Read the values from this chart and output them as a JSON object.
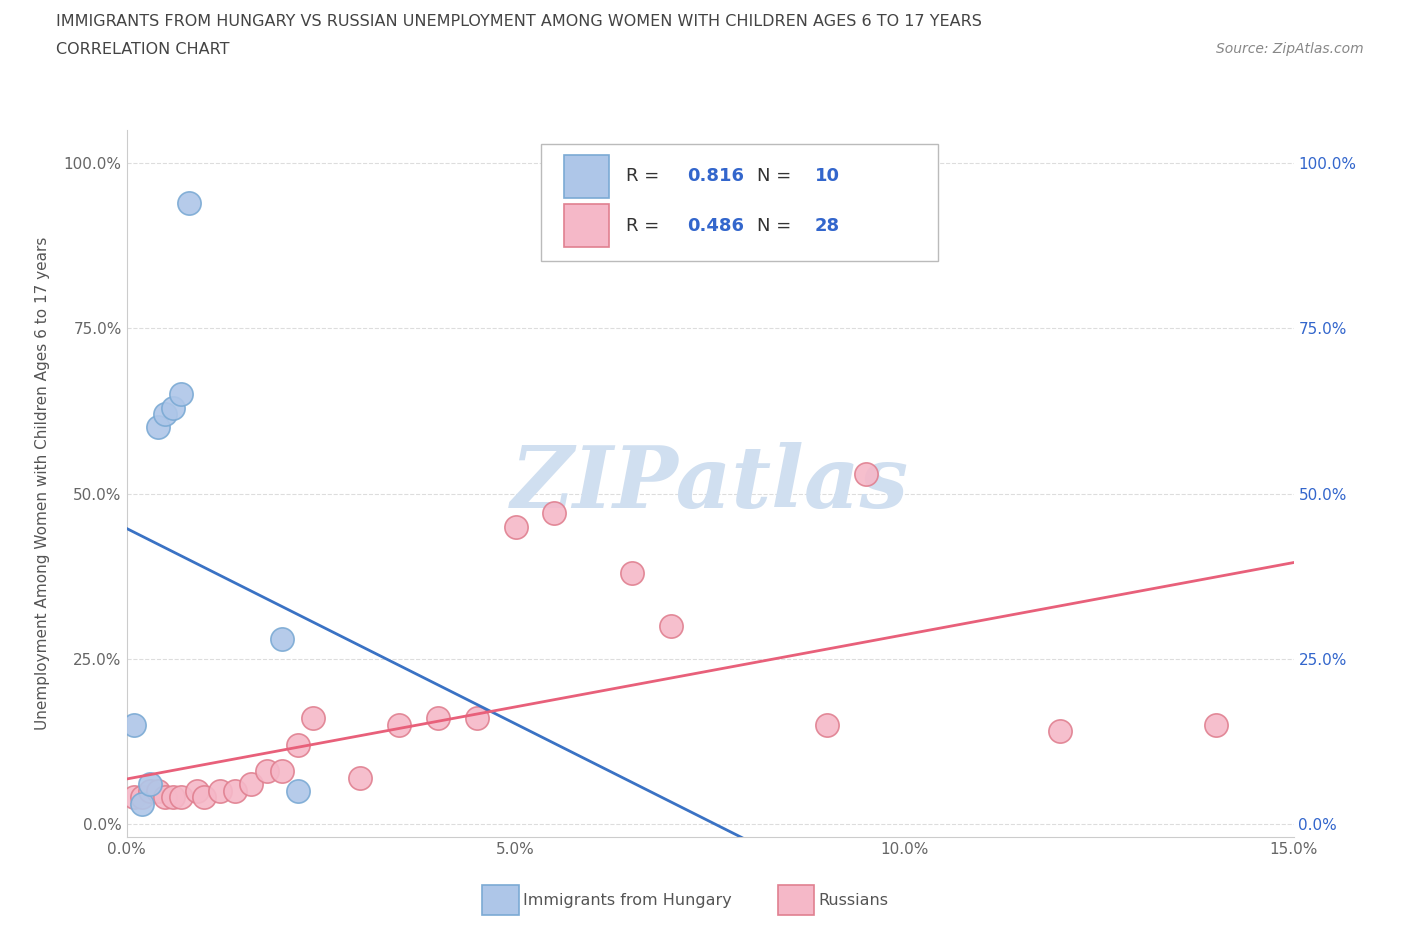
{
  "title_line1": "IMMIGRANTS FROM HUNGARY VS RUSSIAN UNEMPLOYMENT AMONG WOMEN WITH CHILDREN AGES 6 TO 17 YEARS",
  "title_line2": "CORRELATION CHART",
  "source_text": "Source: ZipAtlas.com",
  "ylabel": "Unemployment Among Women with Children Ages 6 to 17 years",
  "xlim": [
    0,
    0.15
  ],
  "ylim": [
    -0.02,
    1.05
  ],
  "yticks": [
    0.0,
    0.25,
    0.5,
    0.75,
    1.0
  ],
  "ytick_labels": [
    "0.0%",
    "25.0%",
    "50.0%",
    "75.0%",
    "100.0%"
  ],
  "xticks": [
    0.0,
    0.05,
    0.1,
    0.15
  ],
  "xtick_labels": [
    "0.0%",
    "5.0%",
    "10.0%",
    "15.0%"
  ],
  "hungary_color": "#aec6e8",
  "hungary_edge": "#7baad4",
  "russia_color": "#f5b8c8",
  "russia_edge": "#e08090",
  "line_hungary_color": "#3a72c4",
  "line_russia_color": "#e8607a",
  "legend_R_hungary": "0.816",
  "legend_N_hungary": "10",
  "legend_R_russia": "0.486",
  "legend_N_russia": "28",
  "hungary_x": [
    0.001,
    0.002,
    0.003,
    0.004,
    0.005,
    0.006,
    0.007,
    0.008,
    0.02,
    0.022
  ],
  "hungary_y": [
    0.15,
    0.03,
    0.06,
    0.6,
    0.62,
    0.63,
    0.65,
    0.94,
    0.28,
    0.05
  ],
  "russia_x": [
    0.001,
    0.002,
    0.003,
    0.004,
    0.005,
    0.006,
    0.007,
    0.009,
    0.01,
    0.012,
    0.014,
    0.016,
    0.018,
    0.02,
    0.022,
    0.024,
    0.03,
    0.035,
    0.04,
    0.045,
    0.05,
    0.055,
    0.065,
    0.07,
    0.09,
    0.095,
    0.12,
    0.14
  ],
  "russia_y": [
    0.04,
    0.04,
    0.05,
    0.05,
    0.04,
    0.04,
    0.04,
    0.05,
    0.04,
    0.05,
    0.05,
    0.06,
    0.08,
    0.08,
    0.12,
    0.16,
    0.07,
    0.15,
    0.16,
    0.16,
    0.45,
    0.47,
    0.38,
    0.3,
    0.15,
    0.53,
    0.14,
    0.15
  ],
  "grid_color": "#dddddd",
  "background_color": "#ffffff",
  "value_color": "#3366cc",
  "label_color": "#333333",
  "watermark_color": "#d0dff0"
}
